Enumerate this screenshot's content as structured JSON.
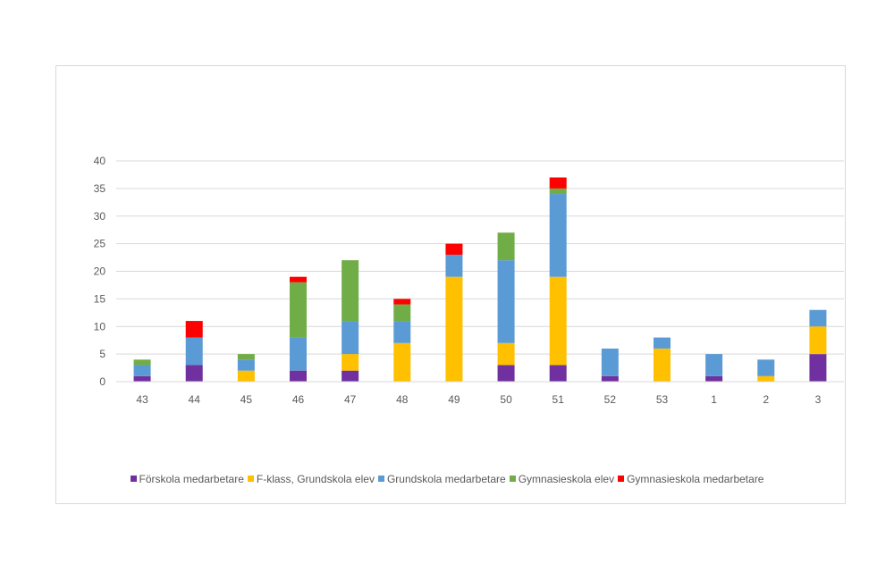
{
  "chart_data": {
    "type": "bar",
    "stacked": true,
    "title": "",
    "xlabel": "",
    "ylabel": "",
    "ylim": [
      0,
      40
    ],
    "yticks": [
      0,
      5,
      10,
      15,
      20,
      25,
      30,
      35,
      40
    ],
    "categories": [
      "43",
      "44",
      "45",
      "46",
      "47",
      "48",
      "49",
      "50",
      "51",
      "52",
      "53",
      "1",
      "2",
      "3"
    ],
    "series": [
      {
        "name": "Förskola medarbetare",
        "color": "#7030a0",
        "values": [
          1,
          3,
          0,
          2,
          2,
          0,
          0,
          3,
          3,
          1,
          0,
          1,
          0,
          5
        ]
      },
      {
        "name": "F-klass, Grundskola elev",
        "color": "#ffc000",
        "values": [
          0,
          0,
          2,
          0,
          3,
          7,
          19,
          4,
          16,
          0,
          6,
          0,
          1,
          5
        ]
      },
      {
        "name": "Grundskola medarbetare",
        "color": "#5b9bd5",
        "values": [
          2,
          5,
          2,
          6,
          6,
          4,
          4,
          15,
          15,
          5,
          2,
          4,
          3,
          3
        ]
      },
      {
        "name": "Gymnasieskola elev",
        "color": "#70ad47",
        "values": [
          1,
          0,
          1,
          10,
          11,
          3,
          0,
          5,
          1,
          0,
          0,
          0,
          0,
          0
        ]
      },
      {
        "name": "Gymnasieskola medarbetare",
        "color": "#ff0000",
        "values": [
          0,
          3,
          0,
          1,
          0,
          1,
          2,
          0,
          2,
          0,
          0,
          0,
          0,
          0
        ]
      }
    ],
    "grid": true,
    "legend_position": "bottom"
  }
}
